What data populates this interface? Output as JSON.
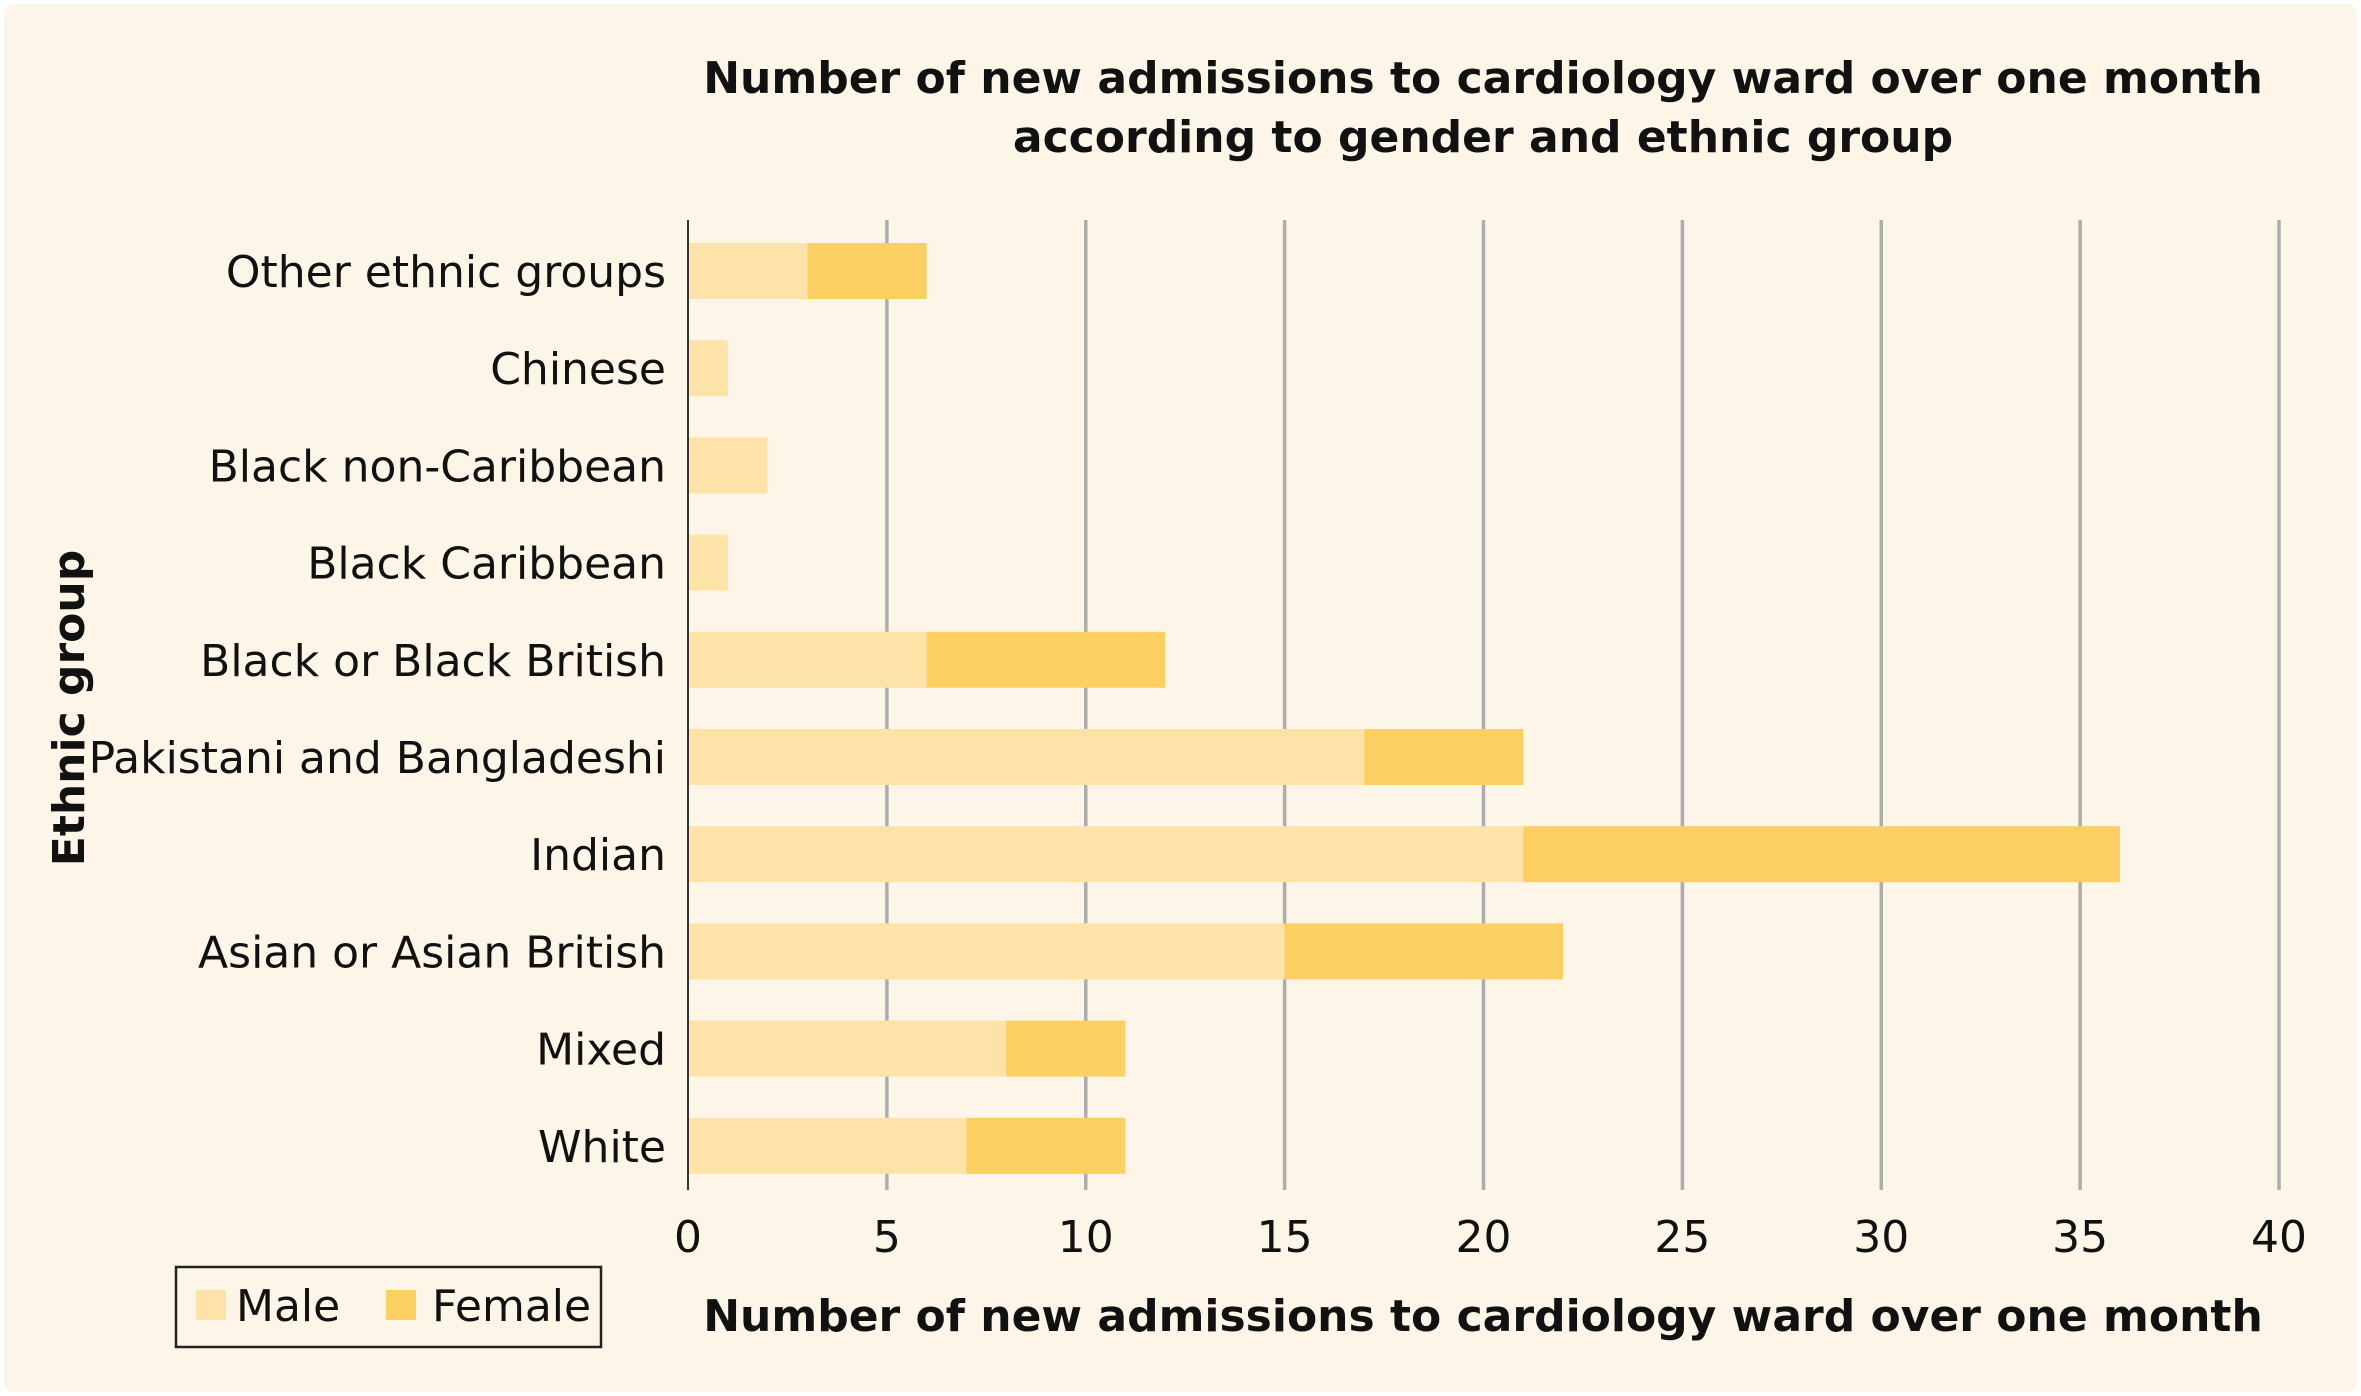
{
  "chart_data": {
    "type": "bar",
    "orientation": "horizontal",
    "stacked": true,
    "title_lines": [
      "Number of new admissions to cardiology ward over one month",
      "according to gender and ethnic group"
    ],
    "xlabel": "Number of new admissions to cardiology ward over one month",
    "ylabel": "Ethnic group",
    "categories": [
      "Other ethnic groups",
      "Chinese",
      "Black non-Caribbean",
      "Black Caribbean",
      "Black or Black British",
      "Pakistani and Bangladeshi",
      "Indian",
      "Asian or Asian British",
      "Mixed",
      "White"
    ],
    "series": [
      {
        "name": "Male",
        "color": "#FDE3A7",
        "values": [
          3,
          1,
          2,
          1,
          6,
          17,
          21,
          15,
          8,
          7
        ]
      },
      {
        "name": "Female",
        "color": "#FCCF63",
        "values": [
          3,
          0,
          0,
          0,
          6,
          4,
          15,
          7,
          3,
          4
        ]
      }
    ],
    "xlim": [
      0,
      40
    ],
    "xticks": [
      "0",
      "5",
      "10",
      "15",
      "20",
      "25",
      "30",
      "35",
      "40"
    ],
    "grid": "vertical",
    "legend_position": "bottom-left",
    "colors": {
      "background": "#FDF6E8",
      "grid": "#ADADAD",
      "axis": "#333333",
      "text": "#111111"
    }
  }
}
